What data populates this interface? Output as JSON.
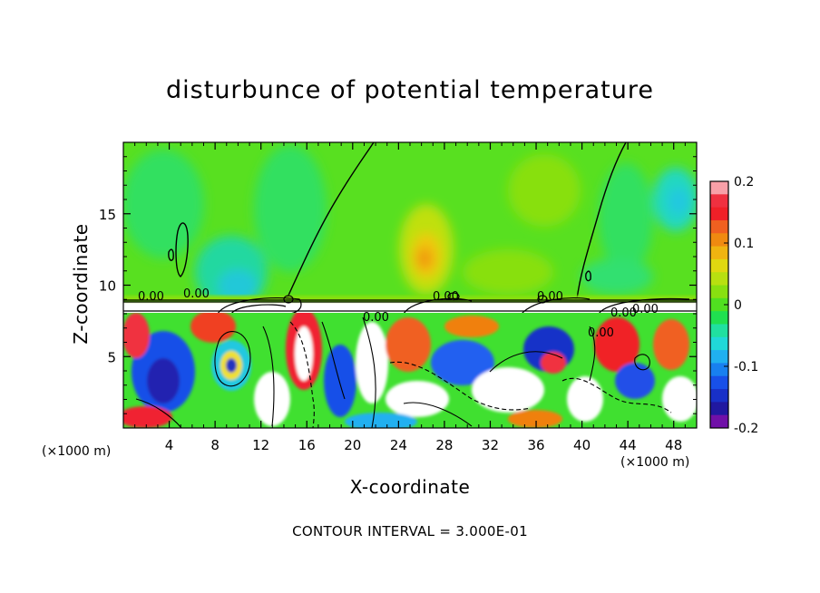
{
  "chart_data": {
    "type": "heatmap",
    "title": "disturbunce of potential temperature",
    "xlabel": "X-coordinate",
    "ylabel": "Z-coordinate",
    "x_units": "(×1000 m)",
    "x_ticks": [
      4,
      8,
      12,
      16,
      20,
      24,
      28,
      32,
      36,
      40,
      44,
      48
    ],
    "y_ticks": [
      5,
      10,
      15
    ],
    "xlim": [
      0,
      50
    ],
    "ylim": [
      0,
      20
    ],
    "colorbar": {
      "ticks": [
        "0.2",
        "0.1",
        "0",
        "-0.1",
        "-0.2"
      ],
      "range": [
        -0.2,
        0.2
      ],
      "colors": [
        "#f8a0a8",
        "#f03040",
        "#f02028",
        "#f06020",
        "#f08a10",
        "#f0b410",
        "#e0d810",
        "#b8e010",
        "#88e010",
        "#50e020",
        "#20e050",
        "#20e0a0",
        "#20d8d8",
        "#20b0f0",
        "#1880f0",
        "#1850e8",
        "#1830c8",
        "#2018a0",
        "#7010a8"
      ]
    },
    "contour_labels": [
      "0.00",
      "0.00",
      "0.00",
      "0.00",
      "0.00",
      "0.00",
      "0.00",
      "0.00"
    ],
    "contour_interval_text": "CONTOUR INTERVAL = 3.000E-01"
  }
}
